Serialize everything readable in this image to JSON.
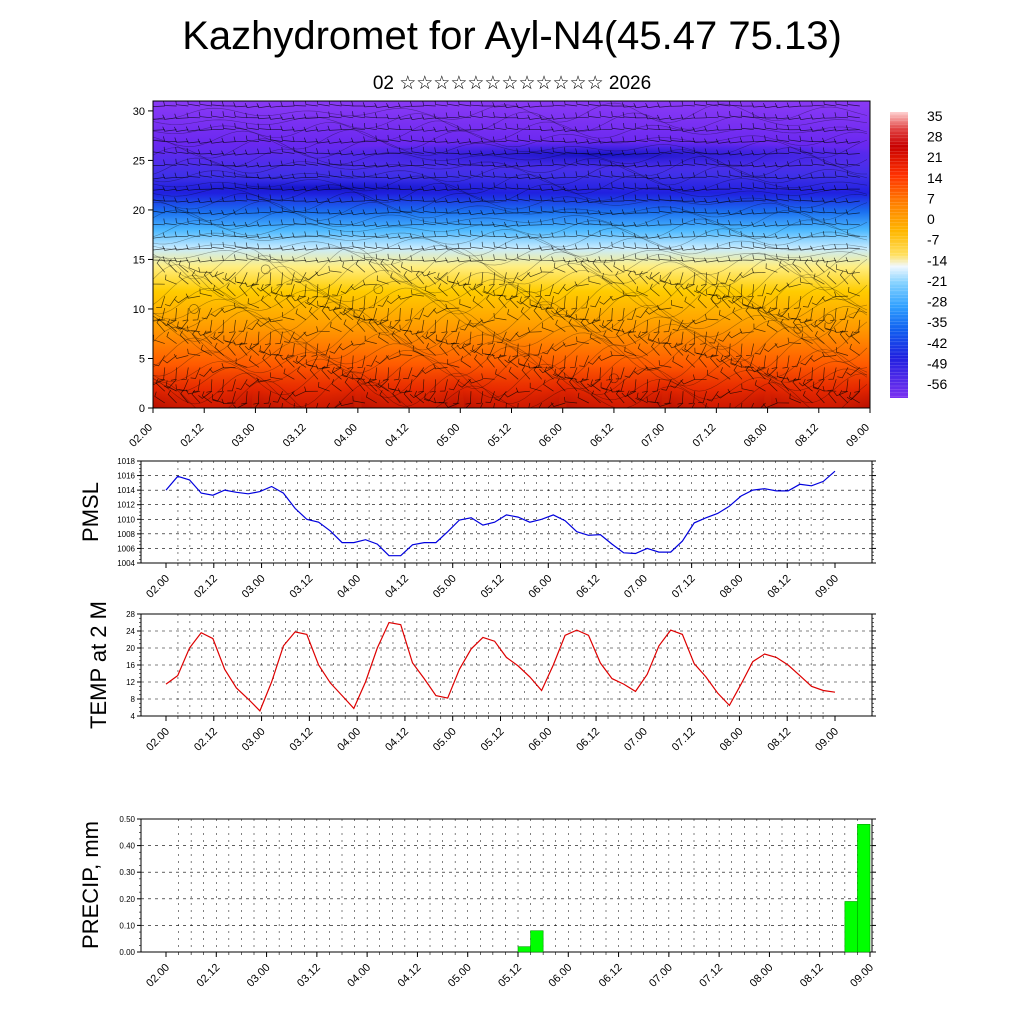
{
  "header": {
    "title": "Kazhydromet for Ayl-N4(45.47 75.13)",
    "subtitle": "02 ☆☆☆☆☆☆☆☆☆☆☆☆ 2026"
  },
  "time_labels": [
    "02.00",
    "02.12",
    "03.00",
    "03.12",
    "04.00",
    "04.12",
    "05.00",
    "05.12",
    "06.00",
    "06.12",
    "07.00",
    "07.12",
    "08.00",
    "08.12",
    "09.00"
  ],
  "chart_data": [
    {
      "id": "cross-section",
      "type": "heatmap",
      "description_fields": "temperature contour with wind barbs",
      "y_ticks": [
        0,
        5,
        10,
        15,
        20,
        25,
        30
      ],
      "ylim": [
        0,
        31
      ],
      "colorbar_labels": [
        "35",
        "28",
        "21",
        "14",
        "7",
        "0",
        "-7",
        "-14",
        "-21",
        "-28",
        "-35",
        "-42",
        "-49",
        "-56"
      ],
      "colorbar_range": [
        -63,
        42
      ],
      "surface_temp_maxima_x": [
        0.5,
        1.5,
        2.5,
        3.5,
        4.5,
        5.5,
        6.5
      ],
      "isotherm_levels_height": {
        "warm": 3,
        "mild": 9,
        "freezing": 16,
        "cold": 21,
        "tropopause": 24
      }
    },
    {
      "id": "pmsl",
      "type": "line",
      "ylabel": "PMSL",
      "color": "#0000dd",
      "ylim": [
        1004,
        1018
      ],
      "y_ticks": [
        "1004",
        "1006",
        "1008",
        "1010",
        "1012",
        "1014",
        "1016",
        "1018"
      ],
      "x_step_hours": 3,
      "values": [
        1014,
        1015.9,
        1015.4,
        1013.6,
        1013.3,
        1014.0,
        1013.7,
        1013.5,
        1013.8,
        1014.5,
        1013.6,
        1011.5,
        1010.0,
        1009.6,
        1008.4,
        1006.8,
        1006.8,
        1007.2,
        1006.6,
        1005.0,
        1005.0,
        1006.5,
        1006.8,
        1006.8,
        1008.3,
        1009.9,
        1010.2,
        1009.2,
        1009.6,
        1010.6,
        1010.3,
        1009.6,
        1010.0,
        1010.6,
        1009.8,
        1008.3,
        1007.8,
        1007.9,
        1006.6,
        1005.4,
        1005.3,
        1006.0,
        1005.5,
        1005.5,
        1007.0,
        1009.5,
        1010.2,
        1010.8,
        1011.8,
        1013.2,
        1014.0,
        1014.2,
        1013.9,
        1013.9,
        1014.8,
        1014.6,
        1015.2,
        1016.6
      ]
    },
    {
      "id": "temp2m",
      "type": "line",
      "ylabel": "TEMP at 2 M",
      "color": "#dd0000",
      "ylim": [
        4,
        28
      ],
      "y_ticks": [
        "4",
        "8",
        "12",
        "16",
        "20",
        "24",
        "28"
      ],
      "x_step_hours": 3,
      "values": [
        11.5,
        13.5,
        20,
        23.6,
        22.2,
        15,
        10.6,
        8,
        5.2,
        12,
        20.5,
        23.8,
        23.2,
        16,
        11.8,
        8.8,
        5.8,
        12,
        20,
        26,
        25.5,
        16.5,
        12.8,
        8.8,
        8.2,
        15,
        19.8,
        22.5,
        21.6,
        17.8,
        15.8,
        13.2,
        10,
        16,
        23,
        24.2,
        23,
        16.5,
        12.8,
        11.5,
        9.8,
        13.8,
        20.5,
        24.2,
        23.2,
        16.3,
        13.2,
        9.4,
        6.5,
        11.5,
        16.8,
        18.6,
        17.8,
        16,
        13.5,
        11,
        10,
        9.6
      ]
    },
    {
      "id": "precip",
      "type": "bar",
      "ylabel": "PRECIP, mm",
      "color": "#00ff00",
      "ylim": [
        0,
        0.5
      ],
      "y_ticks": [
        "0.00",
        "0.10",
        "0.20",
        "0.30",
        "0.40",
        "0.50"
      ],
      "bars": [
        {
          "x_hours": 87,
          "value": 0.02
        },
        {
          "x_hours": 90,
          "value": 0.08
        },
        {
          "x_hours": 165,
          "value": 0.19
        },
        {
          "x_hours": 168,
          "value": 0.48
        }
      ]
    }
  ]
}
